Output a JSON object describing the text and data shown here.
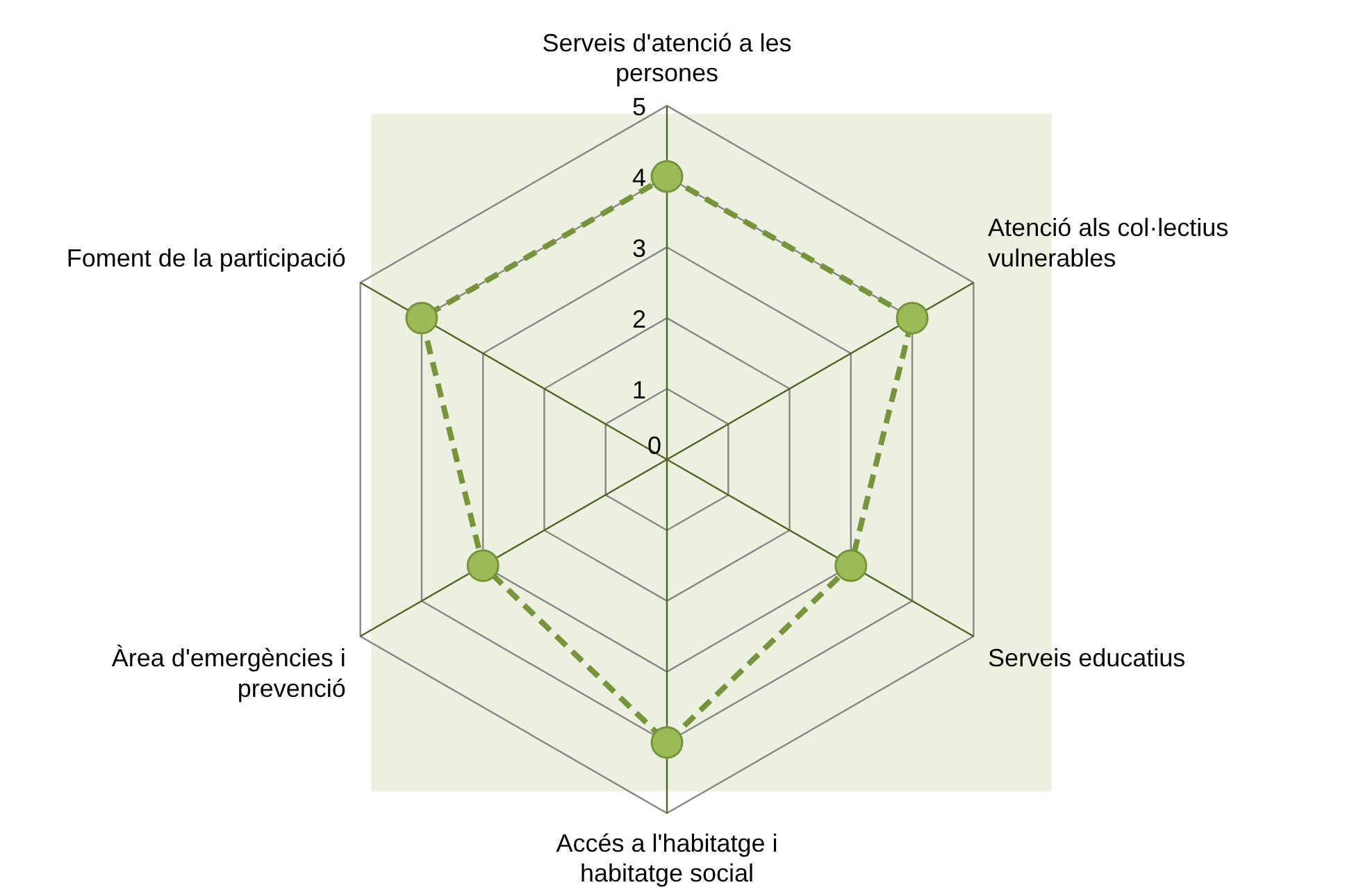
{
  "chart_data": {
    "type": "radar",
    "categories": [
      "Serveis d'atenció a les persones",
      "Atenció als col·lectius vulnerables",
      "Serveis educatius",
      "Accés a l'habitatge i habitatge social",
      "Àrea d'emergències i prevenció",
      "Foment de la participació"
    ],
    "series": [
      {
        "color": "#77933c",
        "values": [
          4,
          4,
          3,
          4,
          3,
          4
        ]
      }
    ],
    "ylim": [
      0,
      5
    ],
    "yticks": [
      0,
      1,
      2,
      3,
      4,
      5
    ],
    "grid": true,
    "legend": false,
    "marker": "circle",
    "line_style": "dashed"
  }
}
